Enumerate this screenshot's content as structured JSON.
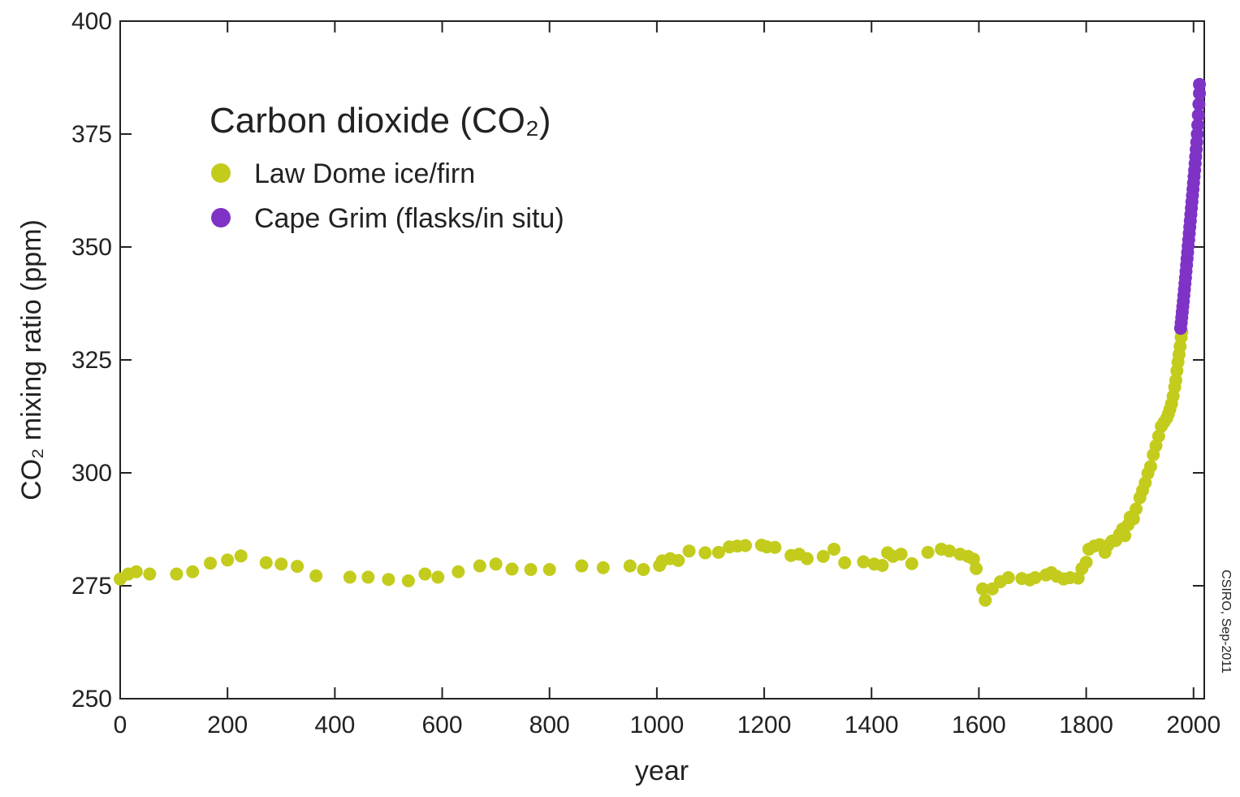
{
  "chart_data": {
    "type": "scatter",
    "title": "Carbon dioxide (CO₂)",
    "xlabel": "year",
    "ylabel": "CO₂ mixing ratio (ppm)",
    "xlim": [
      0,
      2020
    ],
    "ylim": [
      250,
      400
    ],
    "xticks": [
      0,
      200,
      400,
      600,
      800,
      1000,
      1200,
      1400,
      1600,
      1800,
      2000
    ],
    "yticks": [
      250,
      275,
      300,
      325,
      350,
      375,
      400
    ],
    "grid": false,
    "legend_position": "top-left",
    "credit": "CSIRO, Sep-2011",
    "series": [
      {
        "name": "Law Dome ice/firn",
        "color": "#c3cc1c",
        "points": [
          [
            0,
            276.5
          ],
          [
            15,
            277.6
          ],
          [
            30,
            278.1
          ],
          [
            55,
            277.6
          ],
          [
            105,
            277.6
          ],
          [
            135,
            278.1
          ],
          [
            168,
            280.0
          ],
          [
            200,
            280.7
          ],
          [
            225,
            281.6
          ],
          [
            272,
            280.1
          ],
          [
            300,
            279.8
          ],
          [
            330,
            279.3
          ],
          [
            365,
            277.2
          ],
          [
            428,
            276.9
          ],
          [
            462,
            276.9
          ],
          [
            500,
            276.4
          ],
          [
            537,
            276.1
          ],
          [
            568,
            277.6
          ],
          [
            592,
            276.9
          ],
          [
            630,
            278.1
          ],
          [
            670,
            279.4
          ],
          [
            700,
            279.8
          ],
          [
            730,
            278.7
          ],
          [
            765,
            278.6
          ],
          [
            800,
            278.6
          ],
          [
            860,
            279.4
          ],
          [
            900,
            279.0
          ],
          [
            950,
            279.4
          ],
          [
            975,
            278.6
          ],
          [
            1005,
            279.5
          ],
          [
            1010,
            280.5
          ],
          [
            1025,
            281.0
          ],
          [
            1040,
            280.6
          ],
          [
            1060,
            282.7
          ],
          [
            1090,
            282.3
          ],
          [
            1115,
            282.4
          ],
          [
            1135,
            283.6
          ],
          [
            1150,
            283.8
          ],
          [
            1165,
            283.9
          ],
          [
            1195,
            284.0
          ],
          [
            1205,
            283.6
          ],
          [
            1220,
            283.5
          ],
          [
            1250,
            281.7
          ],
          [
            1265,
            282.0
          ],
          [
            1280,
            281.0
          ],
          [
            1310,
            281.5
          ],
          [
            1330,
            283.1
          ],
          [
            1350,
            280.1
          ],
          [
            1385,
            280.3
          ],
          [
            1405,
            279.8
          ],
          [
            1420,
            279.5
          ],
          [
            1430,
            282.3
          ],
          [
            1440,
            281.5
          ],
          [
            1455,
            282.0
          ],
          [
            1475,
            279.9
          ],
          [
            1505,
            282.4
          ],
          [
            1530,
            283.1
          ],
          [
            1545,
            282.7
          ],
          [
            1565,
            282.0
          ],
          [
            1580,
            281.5
          ],
          [
            1590,
            280.9
          ],
          [
            1595,
            278.8
          ],
          [
            1607,
            274.3
          ],
          [
            1612,
            271.8
          ],
          [
            1625,
            274.3
          ],
          [
            1640,
            275.9
          ],
          [
            1655,
            276.8
          ],
          [
            1680,
            276.6
          ],
          [
            1695,
            276.3
          ],
          [
            1705,
            276.8
          ],
          [
            1725,
            277.4
          ],
          [
            1735,
            277.9
          ],
          [
            1745,
            277.1
          ],
          [
            1758,
            276.5
          ],
          [
            1770,
            276.8
          ],
          [
            1785,
            276.7
          ],
          [
            1792,
            278.8
          ],
          [
            1800,
            280.2
          ],
          [
            1805,
            283.1
          ],
          [
            1815,
            283.8
          ],
          [
            1825,
            284.1
          ],
          [
            1835,
            282.4
          ],
          [
            1840,
            283.9
          ],
          [
            1848,
            284.9
          ],
          [
            1855,
            285.0
          ],
          [
            1862,
            286.4
          ],
          [
            1868,
            287.6
          ],
          [
            1872,
            286.1
          ],
          [
            1878,
            288.5
          ],
          [
            1882,
            290.2
          ],
          [
            1888,
            289.8
          ],
          [
            1893,
            292.0
          ],
          [
            1900,
            294.5
          ],
          [
            1905,
            296.1
          ],
          [
            1910,
            297.8
          ],
          [
            1915,
            299.9
          ],
          [
            1920,
            301.4
          ],
          [
            1925,
            304.0
          ],
          [
            1930,
            306.0
          ],
          [
            1935,
            308.1
          ],
          [
            1940,
            310.3
          ],
          [
            1945,
            311.2
          ],
          [
            1950,
            312.1
          ],
          [
            1953,
            313.0
          ],
          [
            1956,
            314.1
          ],
          [
            1959,
            315.3
          ],
          [
            1962,
            317.0
          ],
          [
            1965,
            319.0
          ],
          [
            1967,
            320.5
          ],
          [
            1969,
            322.6
          ],
          [
            1971,
            324.5
          ],
          [
            1973,
            326.2
          ],
          [
            1975,
            328.0
          ],
          [
            1977,
            330.0
          ],
          [
            1978,
            331.2
          ]
        ]
      },
      {
        "name": "Cape Grim (flasks/in situ)",
        "color": "#7e33c6",
        "points": [
          [
            1976,
            332.0
          ],
          [
            1977,
            333.2
          ],
          [
            1978,
            334.4
          ],
          [
            1979,
            335.6
          ],
          [
            1980,
            336.8
          ],
          [
            1981,
            338.0
          ],
          [
            1982,
            339.3
          ],
          [
            1983,
            340.6
          ],
          [
            1984,
            341.9
          ],
          [
            1985,
            343.2
          ],
          [
            1986,
            344.6
          ],
          [
            1987,
            346.0
          ],
          [
            1988,
            347.4
          ],
          [
            1989,
            348.8
          ],
          [
            1990,
            350.2
          ],
          [
            1991,
            351.6
          ],
          [
            1992,
            353.0
          ],
          [
            1993,
            354.4
          ],
          [
            1994,
            355.8
          ],
          [
            1995,
            357.2
          ],
          [
            1996,
            358.6
          ],
          [
            1997,
            360.0
          ],
          [
            1998,
            361.4
          ],
          [
            1999,
            362.8
          ],
          [
            2000,
            364.2
          ],
          [
            2001,
            365.6
          ],
          [
            2002,
            367.0
          ],
          [
            2003,
            368.5
          ],
          [
            2004,
            370.0
          ],
          [
            2005,
            371.6
          ],
          [
            2006,
            373.2
          ],
          [
            2007,
            375.0
          ],
          [
            2008,
            377.0
          ],
          [
            2009,
            379.2
          ],
          [
            2010,
            381.6
          ],
          [
            2011,
            384.0
          ],
          [
            2011,
            386.0
          ]
        ]
      }
    ]
  }
}
